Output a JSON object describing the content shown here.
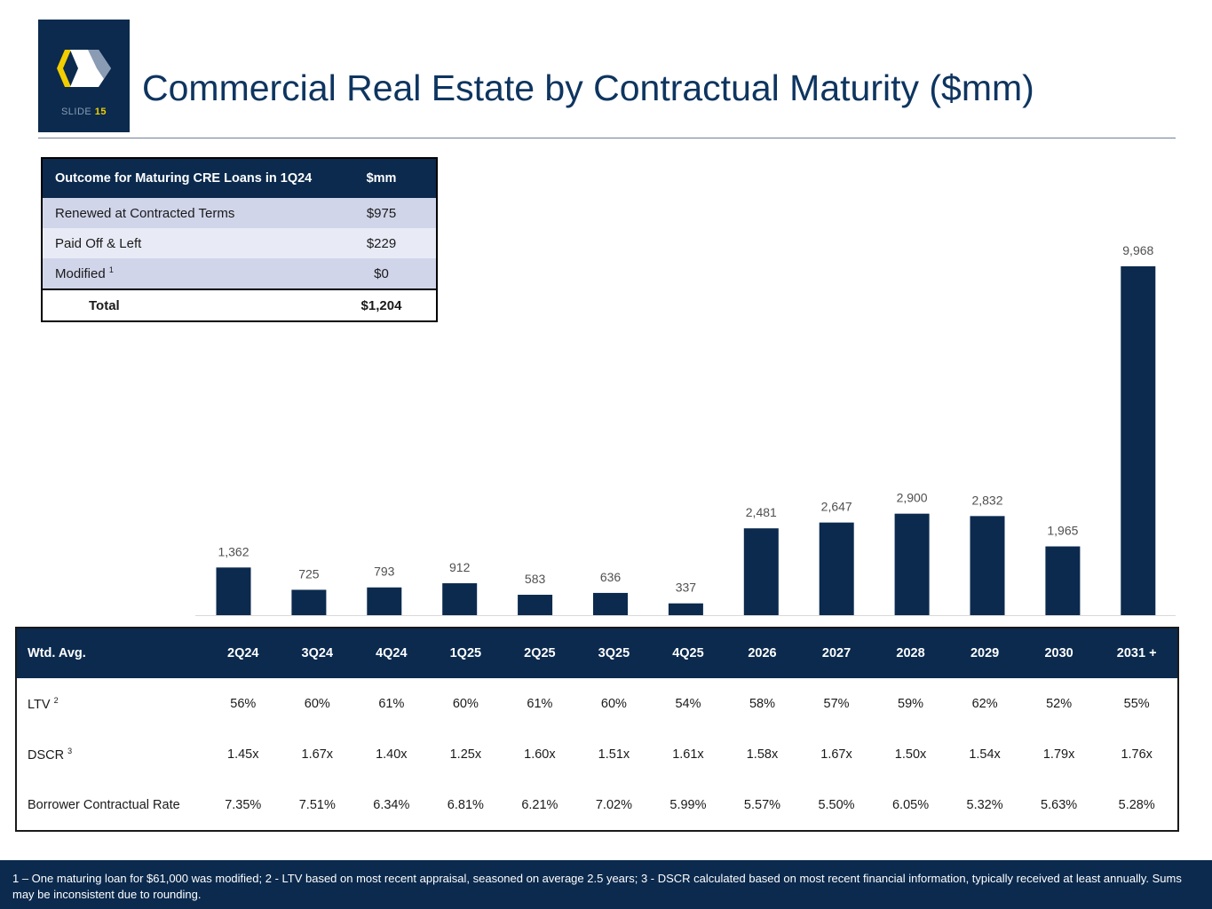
{
  "slide": {
    "label": "SLIDE",
    "number": "15"
  },
  "title": "Commercial Real Estate by Contractual Maturity ($mm)",
  "outcome_table": {
    "header": {
      "label": "Outcome for Maturing CRE Loans in 1Q24",
      "value": "$mm"
    },
    "rows": [
      {
        "label": "Renewed at Contracted Terms",
        "sup": "",
        "value": "$975"
      },
      {
        "label": "Paid Off & Left",
        "sup": "",
        "value": "$229"
      },
      {
        "label": "Modified",
        "sup": "1",
        "value": "$0"
      }
    ],
    "total": {
      "label": "Total",
      "value": "$1,204"
    }
  },
  "chart_data": {
    "type": "bar",
    "title": "Commercial Real Estate by Contractual Maturity ($mm)",
    "categories": [
      "2Q24",
      "3Q24",
      "4Q24",
      "1Q25",
      "2Q25",
      "3Q25",
      "4Q25",
      "2026",
      "2027",
      "2028",
      "2029",
      "2030",
      "2031 +"
    ],
    "values": [
      1362,
      725,
      793,
      912,
      583,
      636,
      337,
      2481,
      2647,
      2900,
      2832,
      1965,
      9968
    ],
    "data_labels": [
      "1,362",
      "725",
      "793",
      "912",
      "583",
      "636",
      "337",
      "2,481",
      "2,647",
      "2,900",
      "2,832",
      "1,965",
      "9,968"
    ],
    "xlabel": "",
    "ylabel": "",
    "ylim": [
      0,
      10000
    ],
    "bar_color": "#0b2a4e",
    "grid": false
  },
  "metrics_table": {
    "header_label": "Wtd. Avg.",
    "columns": [
      "2Q24",
      "3Q24",
      "4Q24",
      "1Q25",
      "2Q25",
      "3Q25",
      "4Q25",
      "2026",
      "2027",
      "2028",
      "2029",
      "2030",
      "2031 +"
    ],
    "rows": [
      {
        "label": "LTV",
        "sup": "2",
        "values": [
          "56%",
          "60%",
          "61%",
          "60%",
          "61%",
          "60%",
          "54%",
          "58%",
          "57%",
          "59%",
          "62%",
          "52%",
          "55%"
        ]
      },
      {
        "label": "DSCR",
        "sup": "3",
        "values": [
          "1.45x",
          "1.67x",
          "1.40x",
          "1.25x",
          "1.60x",
          "1.51x",
          "1.61x",
          "1.58x",
          "1.67x",
          "1.50x",
          "1.54x",
          "1.79x",
          "1.76x"
        ]
      },
      {
        "label": "Borrower Contractual Rate",
        "sup": "",
        "values": [
          "7.35%",
          "7.51%",
          "6.34%",
          "6.81%",
          "6.21%",
          "7.02%",
          "5.99%",
          "5.57%",
          "5.50%",
          "6.05%",
          "5.32%",
          "5.63%",
          "5.28%"
        ]
      }
    ]
  },
  "footer": "1 – One maturing loan for $61,000 was modified; 2 - LTV based on most recent appraisal, seasoned on average 2.5 years; 3 - DSCR calculated based on most recent financial information, typically received at least annually.  Sums may be inconsistent due to rounding.",
  "colors": {
    "navy": "#0b2a4e",
    "title": "#0e3560",
    "accent_yellow": "#f2cd00"
  }
}
